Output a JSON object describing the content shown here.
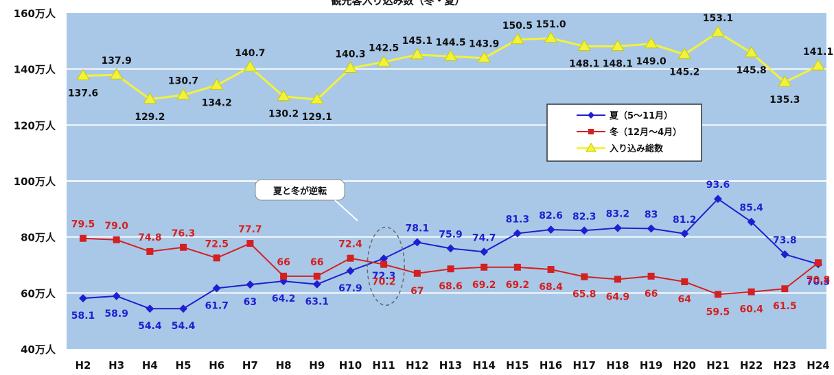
{
  "chart_data": {
    "type": "line",
    "title": "観光客入り込み数（冬・夏）",
    "categories": [
      "H2",
      "H3",
      "H4",
      "H5",
      "H6",
      "H7",
      "H8",
      "H9",
      "H10",
      "H11",
      "H12",
      "H13",
      "H14",
      "H15",
      "H16",
      "H17",
      "H18",
      "H19",
      "H20",
      "H21",
      "H22",
      "H23",
      "H24"
    ],
    "ylim": [
      40,
      160
    ],
    "y_ticks": [
      40,
      60,
      80,
      100,
      120,
      140,
      160
    ],
    "y_tick_labels": [
      "40万人",
      "60万人",
      "80万人",
      "100万人",
      "120万人",
      "140万人",
      "160万人"
    ],
    "grid": true,
    "legend_position": "right-middle",
    "series": [
      {
        "name": "夏（5〜11月）",
        "color": "#1f1fd0",
        "marker": "diamond",
        "values": [
          58.1,
          58.9,
          54.4,
          54.4,
          61.7,
          63,
          64.2,
          63.1,
          67.9,
          72.3,
          78.1,
          75.9,
          74.7,
          81.3,
          82.6,
          82.3,
          83.2,
          83,
          81.2,
          93.6,
          85.4,
          73.8,
          70.3
        ],
        "labels": [
          "58.1",
          "58.9",
          "54.4",
          "54.4",
          "61.7",
          "63",
          "64.2",
          "63.1",
          "67.9",
          "72.3",
          "78.1",
          "75.9",
          "74.7",
          "81.3",
          "82.6",
          "82.3",
          "83.2",
          "83",
          "81.2",
          "93.6",
          "85.4",
          "73.8",
          "70.3"
        ]
      },
      {
        "name": "冬（12月〜4月）",
        "color": "#d42020",
        "marker": "square",
        "values": [
          79.5,
          79.0,
          74.8,
          76.3,
          72.5,
          77.7,
          66,
          66,
          72.4,
          70.2,
          67,
          68.6,
          69.2,
          69.2,
          68.4,
          65.8,
          64.9,
          66,
          64,
          59.5,
          60.4,
          61.5,
          70.8
        ],
        "labels": [
          "79.5",
          "79.0",
          "74.8",
          "76.3",
          "72.5",
          "77.7",
          "66",
          "66",
          "72.4",
          "70.2",
          "67",
          "68.6",
          "69.2",
          "69.2",
          "68.4",
          "65.8",
          "64.9",
          "66",
          "64",
          "59.5",
          "60.4",
          "61.5",
          "70.8"
        ]
      },
      {
        "name": "入り込み総数",
        "color": "#f2f23a",
        "marker": "triangle",
        "values": [
          137.6,
          137.9,
          129.2,
          130.7,
          134.2,
          140.7,
          130.2,
          129.1,
          140.3,
          142.5,
          145.1,
          144.5,
          143.9,
          150.5,
          151.0,
          148.1,
          148.1,
          149.0,
          145.2,
          153.1,
          145.8,
          135.3,
          141.1
        ],
        "labels": [
          "137.6",
          "137.9",
          "129.2",
          "130.7",
          "134.2",
          "140.7",
          "130.2",
          "129.1",
          "140.3",
          "142.5",
          "145.1",
          "144.5",
          "143.9",
          "150.5",
          "151.0",
          "148.1",
          "148.1",
          "149.0",
          "145.2",
          "153.1",
          "145.8",
          "135.3",
          "141.1"
        ]
      }
    ],
    "annotation": {
      "text": "夏と冬が逆転",
      "category": "H11"
    }
  },
  "colors": {
    "plot_bg": "#a9c8e8",
    "grid": "#ffffff",
    "legend_bg": "#ffffff"
  }
}
